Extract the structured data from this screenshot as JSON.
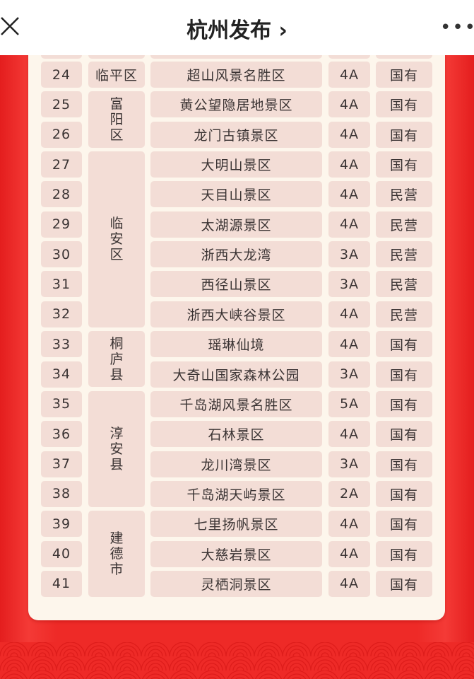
{
  "header": {
    "title": "杭州发布",
    "chevron": "›",
    "close_icon": "close-icon",
    "more_icon": "more-icon",
    "more": "•••"
  },
  "colors": {
    "background": "#ee2a27",
    "card": "#fdf6ec",
    "cell": "#f3ddd6"
  },
  "rows": [
    {
      "no": "24",
      "name": "超山风景名胜区",
      "grade": "4A",
      "ownership": "国有"
    },
    {
      "no": "25",
      "name": "黄公望隐居地景区",
      "grade": "4A",
      "ownership": "国有"
    },
    {
      "no": "26",
      "name": "龙门古镇景区",
      "grade": "4A",
      "ownership": "国有"
    },
    {
      "no": "27",
      "name": "大明山景区",
      "grade": "4A",
      "ownership": "国有"
    },
    {
      "no": "28",
      "name": "天目山景区",
      "grade": "4A",
      "ownership": "民营"
    },
    {
      "no": "29",
      "name": "太湖源景区",
      "grade": "4A",
      "ownership": "民营"
    },
    {
      "no": "30",
      "name": "浙西大龙湾",
      "grade": "3A",
      "ownership": "民营"
    },
    {
      "no": "31",
      "name": "西径山景区",
      "grade": "3A",
      "ownership": "民营"
    },
    {
      "no": "32",
      "name": "浙西大峡谷景区",
      "grade": "4A",
      "ownership": "民营"
    },
    {
      "no": "33",
      "name": "瑶琳仙境",
      "grade": "4A",
      "ownership": "国有"
    },
    {
      "no": "34",
      "name": "大奇山国家森林公园",
      "grade": "3A",
      "ownership": "国有"
    },
    {
      "no": "35",
      "name": "千岛湖风景名胜区",
      "grade": "5A",
      "ownership": "国有"
    },
    {
      "no": "36",
      "name": "石林景区",
      "grade": "4A",
      "ownership": "国有"
    },
    {
      "no": "37",
      "name": "龙川湾景区",
      "grade": "3A",
      "ownership": "国有"
    },
    {
      "no": "38",
      "name": "千岛湖天屿景区",
      "grade": "2A",
      "ownership": "国有"
    },
    {
      "no": "39",
      "name": "七里扬帆景区",
      "grade": "4A",
      "ownership": "国有"
    },
    {
      "no": "40",
      "name": "大慈岩景区",
      "grade": "4A",
      "ownership": "国有"
    },
    {
      "no": "41",
      "name": "灵栖洞景区",
      "grade": "4A",
      "ownership": "国有"
    }
  ],
  "districts": [
    {
      "name": "临平区",
      "rows": 1,
      "horizontal": true
    },
    {
      "name": "富阳区",
      "rows": 2
    },
    {
      "name": "临安区",
      "rows": 6
    },
    {
      "name": "桐庐县",
      "rows": 2
    },
    {
      "name": "淳安县",
      "rows": 4
    },
    {
      "name": "建德市",
      "rows": 3
    }
  ]
}
